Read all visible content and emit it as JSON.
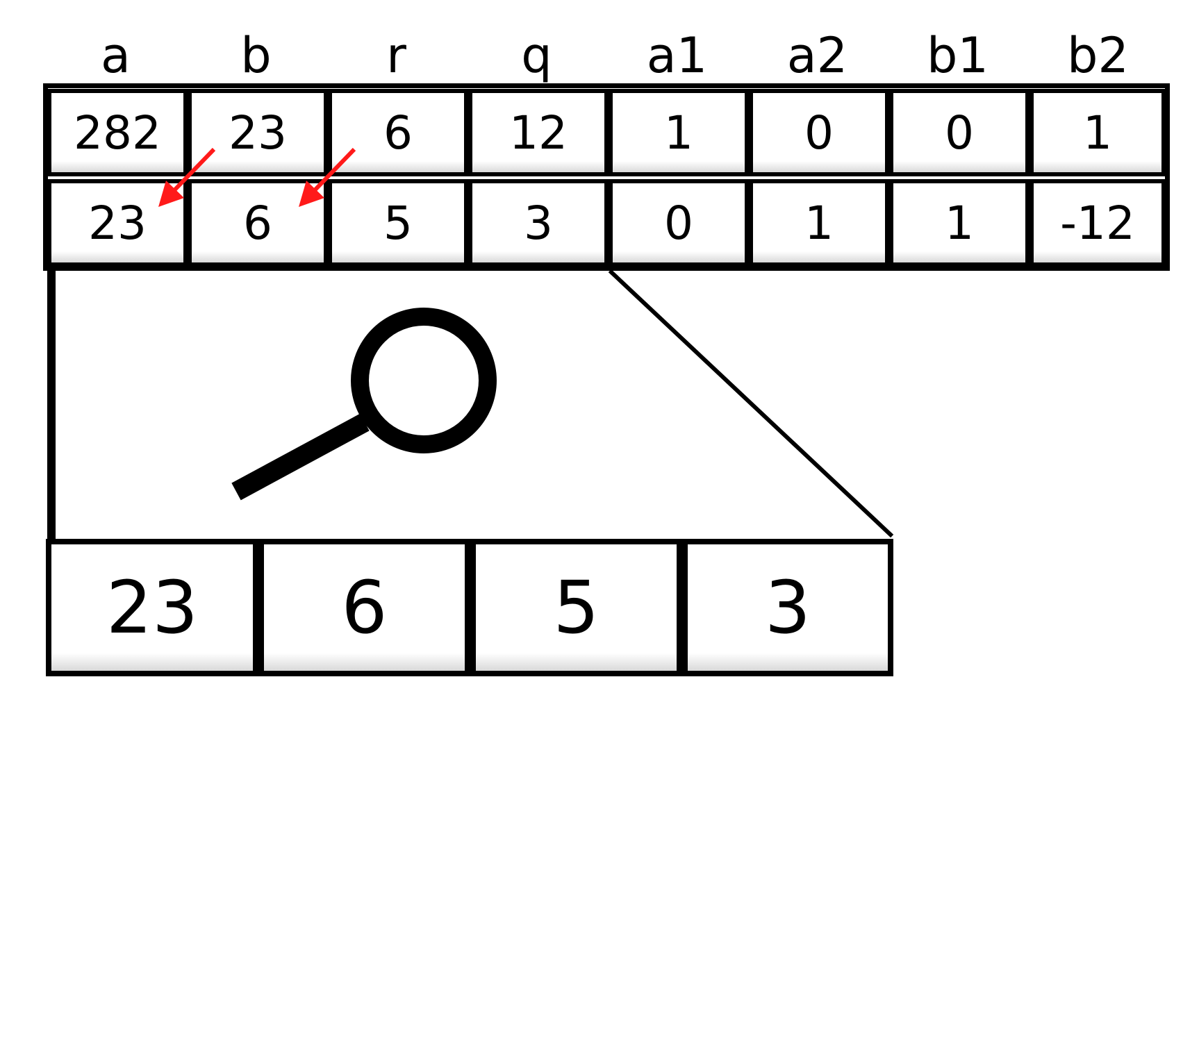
{
  "table": {
    "headers": [
      "a",
      "b",
      "r",
      "q",
      "a1",
      "a2",
      "b1",
      "b2"
    ],
    "rows": [
      [
        "282",
        "23",
        "6",
        "12",
        "1",
        "0",
        "0",
        "1"
      ],
      [
        "23",
        "6",
        "5",
        "3",
        "0",
        "1",
        "1",
        "-12"
      ]
    ]
  },
  "zoom": {
    "cells": [
      "23",
      "6",
      "5",
      "3"
    ]
  },
  "colors": {
    "arrow": "#ff1a1a",
    "line": "#000000",
    "cell_bg": "#ffffff"
  },
  "icons": [
    "magnifier-icon",
    "arrow-icon"
  ]
}
